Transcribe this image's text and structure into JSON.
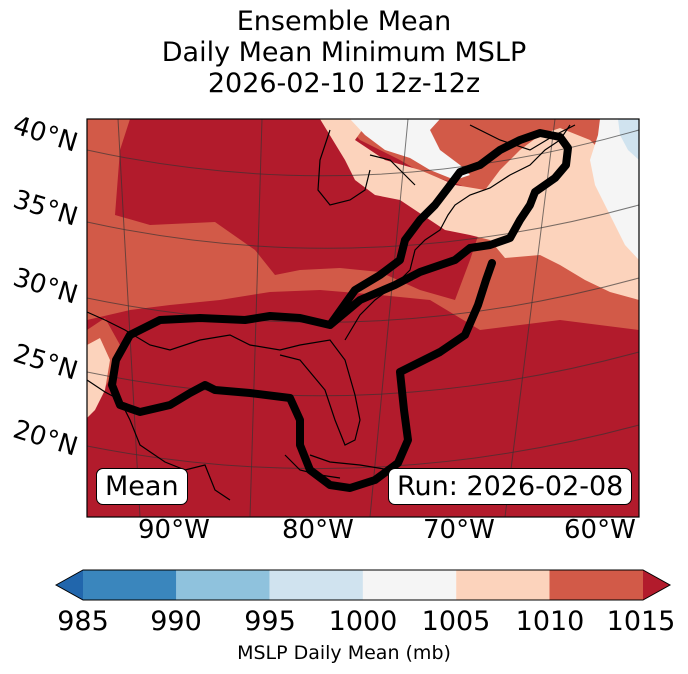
{
  "title": {
    "line1": "Ensemble Mean",
    "line2": "Daily Mean Minimum MSLP",
    "line3": "2026-02-10 12z-12z"
  },
  "map": {
    "lat_labels": [
      "40°N",
      "35°N",
      "30°N",
      "25°N",
      "20°N"
    ],
    "lon_labels": [
      "90°W",
      "80°W",
      "70°W",
      "60°W"
    ],
    "box_left": "Mean",
    "box_right": "Run: 2026-02-08",
    "extent": {
      "lon": [
        -96,
        -58
      ],
      "lat": [
        15,
        42
      ]
    },
    "fill_colors": {
      "c985": "#3a86bd",
      "c990": "#8fc2dd",
      "c995": "#d0e3ef",
      "c1000": "#f5f5f5",
      "c1005": "#fcd3bc",
      "c1010": "#d25a48",
      "c1015": "#b21b2c"
    },
    "contour_color": "#000000"
  },
  "colorbar": {
    "ticks": [
      "985",
      "990",
      "995",
      "1000",
      "1005",
      "1010",
      "1015"
    ],
    "colors": [
      "#3a86bd",
      "#8fc2dd",
      "#d0e3ef",
      "#f5f5f5",
      "#fcd3bc",
      "#d25a48"
    ],
    "under_color": "#2166ac",
    "over_color": "#b21b2c",
    "label": "MSLP Daily Mean (mb)"
  }
}
